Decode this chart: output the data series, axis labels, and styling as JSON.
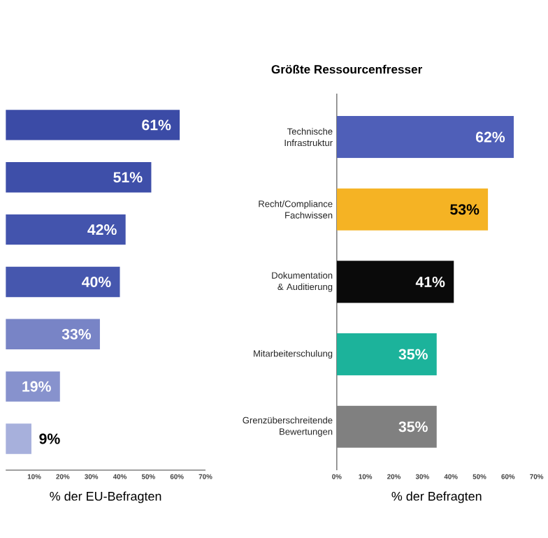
{
  "chart_data": [
    {
      "type": "bar",
      "orientation": "horizontal",
      "categories": [
        null,
        null,
        null,
        null,
        null,
        null,
        null
      ],
      "values": [
        61,
        51,
        42,
        40,
        33,
        19,
        9
      ],
      "value_labels": [
        "61%",
        "51%",
        "42%",
        "40%",
        "33%",
        "19%",
        "9%"
      ],
      "colors": [
        "#3b4ba6",
        "#3e4fa9",
        "#4354ad",
        "#4657ae",
        "#7884c6",
        "#8792cd",
        "#a7b0dc"
      ],
      "xlim": [
        0,
        70
      ],
      "xticks": [
        {
          "value": 10,
          "label": "10%"
        },
        {
          "value": 20,
          "label": "20%"
        },
        {
          "value": 30,
          "label": "30%"
        },
        {
          "value": 40,
          "label": "40%"
        },
        {
          "value": 50,
          "label": "50%"
        },
        {
          "value": 60,
          "label": "60%"
        },
        {
          "value": 70,
          "label": "70%"
        }
      ],
      "xlabel": "% der EU-Befragten"
    },
    {
      "type": "bar",
      "orientation": "horizontal",
      "title": "Größte Ressourcenfresser",
      "categories": [
        "Technische Infrastruktur",
        "Recht/Compliance Fachwissen",
        "Dokumentation & Auditierung",
        "Mitarbeiterschulung",
        "Grenzüberschreitende Bewertungen"
      ],
      "values": [
        62,
        53,
        41,
        35,
        35
      ],
      "value_labels": [
        "62%",
        "53%",
        "41%",
        "35%",
        "35%"
      ],
      "colors": [
        "#4f5fb8",
        "#f5b324",
        "#0a0a0a",
        "#1cb39b",
        "#808080"
      ],
      "xlim": [
        0,
        70
      ],
      "xticks": [
        {
          "value": 0,
          "label": "0%"
        },
        {
          "value": 10,
          "label": "10%"
        },
        {
          "value": 20,
          "label": "20%"
        },
        {
          "value": 30,
          "label": "30%"
        },
        {
          "value": 40,
          "label": "40%"
        },
        {
          "value": 50,
          "label": "50%"
        },
        {
          "value": 60,
          "label": "60%"
        },
        {
          "value": 70,
          "label": "70%"
        }
      ],
      "xlabel": "% der Befragten"
    }
  ]
}
